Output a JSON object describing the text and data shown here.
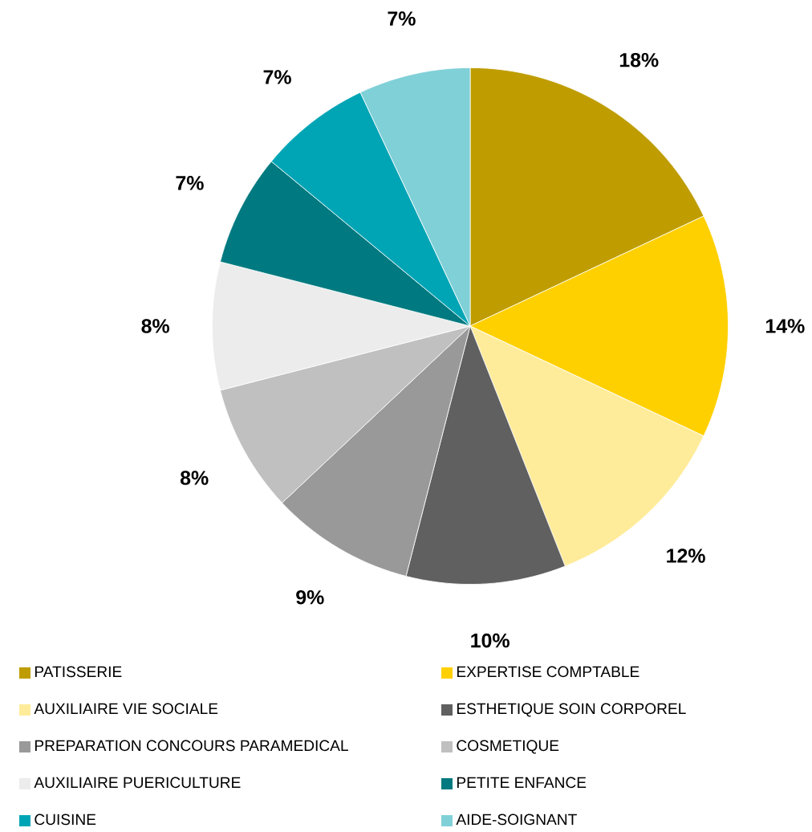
{
  "chart_data": {
    "type": "pie",
    "categories": [
      "PATISSERIE",
      "EXPERTISE COMPTABLE",
      "AUXILIAIRE VIE SOCIALE",
      "ESTHETIQUE SOIN CORPOREL",
      "PREPARATION CONCOURS PARAMEDICAL",
      "COSMETIQUE",
      "AUXILIAIRE PUERICULTURE",
      "PETITE ENFANCE",
      "CUISINE",
      "AIDE-SOIGNANT"
    ],
    "values": [
      18,
      14,
      12,
      10,
      9,
      8,
      8,
      7,
      7,
      7
    ],
    "value_labels": [
      "18%",
      "14%",
      "12%",
      "10%",
      "9%",
      "8%",
      "8%",
      "7%",
      "7%",
      "7%"
    ],
    "colors": [
      "#bf9d00",
      "#ffd000",
      "#ffec9a",
      "#606060",
      "#999999",
      "#c0c0c0",
      "#ececec",
      "#007a80",
      "#00a5b5",
      "#80d0d8"
    ],
    "legend": "bottom"
  }
}
